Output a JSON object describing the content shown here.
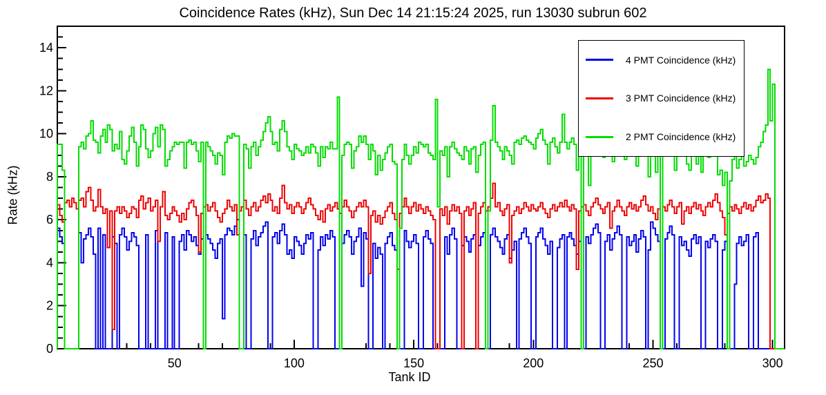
{
  "page_title": "Coincidence Rates (kHz), Sun Dec 14 21:15:24 2025, run 13030 subrun 602",
  "chart_data": {
    "type": "line",
    "subtype": "step-histogram",
    "title": "Coincidence Rates (kHz), Sun Dec 14 21:15:24 2025, run 13030 subrun 602",
    "xlabel": "Tank ID",
    "ylabel": "Rate (kHz)",
    "xlim": [
      1,
      305
    ],
    "ylim": [
      0,
      15
    ],
    "x_bin_start": 1,
    "x_bin_width": 1,
    "x_ticks_major": [
      50,
      100,
      150,
      200,
      250,
      300
    ],
    "x_minor_step": 10,
    "y_ticks_major": [
      0,
      2,
      4,
      6,
      8,
      10,
      12,
      14
    ],
    "y_minor_step": 0.5,
    "grid": false,
    "legend_position": "top-right",
    "frame_color": "#000000",
    "background_color": "#ffffff",
    "series": [
      {
        "name": "4 PMT Coincidence (kHz)",
        "color": "#0000ee",
        "values": [
          5.6,
          5.2,
          4.9,
          0,
          0,
          0,
          0,
          0,
          0,
          5.4,
          4.0,
          5.1,
          5.3,
          5.6,
          5.2,
          4.4,
          0,
          5.6,
          0,
          5.3,
          0,
          0,
          0,
          5.2,
          4.9,
          0,
          5.3,
          5.6,
          5.2,
          4.6,
          5.0,
          5.4,
          5.2,
          4.8,
          0,
          0,
          0,
          5.3,
          0,
          0,
          0,
          5.5,
          0,
          0,
          0,
          5.4,
          0,
          0,
          5.2,
          0,
          0,
          5.0,
          5.3,
          4.6,
          5.5,
          5.3,
          5.0,
          5.2,
          4.8,
          4.4,
          5.1,
          0,
          5.3,
          5.1,
          4.9,
          4.6,
          4.2,
          4.9,
          5.1,
          1.4,
          5.3,
          5.6,
          5.5,
          5.3,
          5.7,
          6.0,
          0,
          0,
          5.3,
          0,
          0,
          5.1,
          5.5,
          4.8,
          5.2,
          5.4,
          5.7,
          5.9,
          0,
          0,
          5.2,
          5.4,
          4.9,
          5.5,
          5.8,
          5.3,
          4.4,
          4.6,
          4.2,
          5.2,
          5.0,
          4.8,
          4.4,
          4.9,
          5.3,
          5.1,
          5.4,
          0,
          0,
          4.6,
          5.2,
          4.8,
          5.3,
          5.1,
          5.5,
          5.2,
          0,
          0,
          0,
          4.9,
          5.3,
          5.5,
          5.2,
          4.4,
          5.0,
          5.2,
          5.6,
          2.9,
          5.4,
          5.1,
          0,
          0,
          4.9,
          4.2,
          4.7,
          4.4,
          0,
          4.9,
          5.2,
          5.4,
          4.8,
          4.6,
          0,
          0,
          0,
          5.5,
          5.0,
          4.7,
          5.0,
          5.3,
          4.9,
          0,
          0,
          5.2,
          5.5,
          5.1,
          4.9,
          0,
          0,
          0,
          0,
          0,
          5.2,
          4.4,
          5.3,
          5.6,
          5.1,
          0,
          0,
          4.8,
          5.2,
          5.0,
          4.5,
          5.1,
          5.3,
          0,
          4.8,
          5.2,
          5.4,
          0,
          0,
          5.3,
          5.6,
          5.2,
          5.0,
          4.7,
          4.4,
          5.1,
          5.3,
          4.2,
          4.6,
          5.0,
          0,
          5.1,
          5.4,
          5.6,
          5.2,
          4.9,
          0,
          0,
          5.2,
          5.4,
          5.6,
          5.1,
          4.8,
          4.4,
          5.0,
          0,
          0,
          4.7,
          5.1,
          5.3,
          0,
          5.2,
          5.4,
          5.1,
          4.8,
          4.4,
          5.0,
          0,
          0,
          5.2,
          4.9,
          5.3,
          5.6,
          5.8,
          5.4,
          0,
          0,
          5.0,
          5.3,
          4.6,
          5.1,
          5.4,
          5.7,
          5.3,
          0,
          0,
          5.2,
          4.8,
          5.0,
          5.3,
          4.5,
          5.1,
          5.5,
          5.2,
          0,
          4.6,
          5.9,
          5.6,
          5.3,
          5.0,
          0,
          0,
          5.1,
          5.4,
          5.7,
          5.3,
          0,
          0,
          5.2,
          4.8,
          5.0,
          4.6,
          4.3,
          5.1,
          5.3,
          4.9,
          5.2,
          0,
          0,
          5.0,
          4.7,
          5.1,
          5.3,
          5.0,
          0,
          0,
          4.6,
          5.0,
          0,
          0,
          0,
          3.0,
          4.9,
          5.2,
          4.8,
          5.0,
          5.3,
          0,
          0,
          5.2,
          5.4,
          0,
          0,
          0,
          0,
          0,
          0,
          0
        ]
      },
      {
        "name": "3 PMT Coincidence (kHz)",
        "color": "#ee0000",
        "values": [
          6.7,
          6.2,
          5.9,
          6.8,
          6.9,
          6.6,
          7.0,
          6.8,
          6.5,
          6.9,
          7.0,
          6.6,
          7.3,
          7.5,
          6.9,
          6.4,
          6.6,
          7.4,
          6.6,
          6.3,
          6.5,
          4.7,
          6.4,
          0.9,
          6.4,
          6.6,
          6.3,
          6.6,
          6.4,
          6.1,
          6.3,
          6.6,
          6.5,
          6.1,
          6.9,
          7.1,
          6.5,
          6.8,
          7.0,
          6.4,
          6.6,
          6.9,
          5.0,
          6.6,
          7.3,
          6.2,
          6.0,
          6.3,
          6.6,
          6.4,
          6.2,
          5.9,
          6.3,
          6.0,
          6.5,
          6.8,
          6.9,
          6.6,
          6.2,
          4.5,
          6.3,
          6.6,
          6.7,
          6.4,
          6.6,
          6.8,
          6.4,
          6.1,
          5.9,
          6.3,
          6.5,
          6.9,
          6.6,
          6.4,
          6.7,
          5.3,
          6.4,
          6.6,
          6.9,
          6.5,
          6.2,
          6.6,
          6.8,
          6.4,
          6.6,
          6.9,
          7.1,
          6.8,
          7.2,
          6.9,
          6.4,
          6.6,
          6.3,
          7.0,
          7.6,
          6.8,
          6.5,
          6.7,
          6.3,
          6.6,
          6.8,
          6.6,
          6.3,
          6.5,
          6.8,
          7.0,
          6.7,
          6.5,
          6.2,
          6.0,
          6.4,
          5.9,
          6.5,
          6.7,
          6.4,
          6.6,
          6.8,
          6.5,
          6.3,
          6.6,
          6.9,
          6.6,
          6.4,
          6.1,
          6.4,
          6.6,
          6.8,
          6.6,
          6.9,
          6.6,
          3.5,
          6.2,
          6.4,
          5.9,
          6.2,
          5.8,
          6.1,
          6.4,
          6.6,
          6.8,
          6.3,
          6.0,
          3.7,
          6.3,
          6.6,
          7.0,
          6.6,
          6.3,
          6.6,
          6.8,
          6.4,
          6.7,
          6.5,
          6.3,
          6.6,
          6.4,
          6.2,
          6.0,
          0,
          0,
          6.5,
          6.2,
          6.6,
          5.8,
          6.4,
          6.7,
          6.4,
          6.6,
          6.3,
          0,
          6.4,
          6.6,
          6.2,
          6.5,
          6.8,
          0,
          6.3,
          6.6,
          6.8,
          6.4,
          6.6,
          7.0,
          7.7,
          6.6,
          6.8,
          6.4,
          6.2,
          6.5,
          6.7,
          4.0,
          6.2,
          6.4,
          6.6,
          6.3,
          6.5,
          6.8,
          6.6,
          6.4,
          6.7,
          6.5,
          6.4,
          6.6,
          6.8,
          6.5,
          6.3,
          6.1,
          6.5,
          6.7,
          6.4,
          6.6,
          6.8,
          6.6,
          6.9,
          6.6,
          6.4,
          6.7,
          6.5,
          3.7,
          6.4,
          6.6,
          6.7,
          6.4,
          6.2,
          6.6,
          6.8,
          7.0,
          6.7,
          6.5,
          6.3,
          6.6,
          6.8,
          5.6,
          6.4,
          6.6,
          6.9,
          6.6,
          6.4,
          6.2,
          6.6,
          6.8,
          6.5,
          6.7,
          6.4,
          6.6,
          6.9,
          7.1,
          6.7,
          6.4,
          6.6,
          6.3,
          6.0,
          6.5,
          0,
          6.6,
          6.4,
          6.7,
          6.9,
          6.6,
          6.3,
          6.6,
          6.8,
          5.8,
          6.4,
          6.6,
          6.3,
          6.6,
          6.8,
          6.5,
          6.7,
          6.4,
          6.2,
          6.6,
          6.8,
          6.6,
          6.9,
          7.2,
          6.8,
          6.4,
          6.1,
          5.3,
          6.3,
          6.6,
          6.4,
          6.7,
          6.5,
          6.3,
          6.6,
          6.8,
          6.5,
          6.7,
          6.4,
          6.6,
          6.9,
          7.1,
          6.8,
          6.9,
          7.2,
          7.0,
          0,
          0
        ]
      },
      {
        "name": "2 PMT Coincidence (kHz)",
        "color": "#00dd00",
        "values": [
          9.5,
          9.5,
          8.3,
          0,
          0,
          0,
          0,
          0,
          0,
          9.4,
          9.6,
          9.3,
          9.9,
          10.0,
          10.6,
          9.7,
          9.6,
          9.1,
          9.9,
          10.2,
          9.6,
          10.4,
          10.2,
          9.2,
          9.5,
          9.3,
          10.1,
          8.8,
          8.6,
          9.2,
          9.9,
          10.3,
          9.6,
          8.5,
          9.4,
          10.4,
          10.2,
          9.3,
          8.9,
          9.2,
          10.0,
          10.3,
          9.4,
          10.4,
          10.2,
          8.5,
          8.8,
          9.2,
          9.4,
          9.6,
          9.5,
          9.6,
          9.6,
          8.4,
          9.6,
          9.7,
          9.5,
          9.6,
          9.2,
          8.7,
          9.6,
          0,
          9.6,
          9.4,
          9.2,
          9.0,
          8.6,
          9.1,
          9.0,
          8.1,
          9.6,
          9.9,
          9.8,
          10.0,
          9.9,
          9.9,
          0,
          0,
          9.5,
          9.3,
          8.4,
          9.4,
          9.6,
          9.0,
          9.4,
          9.7,
          10.1,
          10.5,
          10.8,
          10.1,
          9.5,
          9.6,
          9.2,
          10.2,
          10.6,
          10.1,
          9.4,
          9.2,
          8.8,
          9.5,
          9.3,
          9.2,
          9.0,
          9.1,
          9.4,
          9.1,
          9.5,
          9.4,
          9.1,
          8.5,
          9.4,
          8.9,
          9.4,
          9.3,
          9.6,
          9.3,
          9.3,
          11.7,
          0,
          9.0,
          9.5,
          9.6,
          9.5,
          8.4,
          9.2,
          9.4,
          9.9,
          9.6,
          9.9,
          9.5,
          8.8,
          9.5,
          9.2,
          8.1,
          9.0,
          8.3,
          8.8,
          9.1,
          9.4,
          9.5,
          8.7,
          8.6,
          0,
          5.6,
          8.8,
          9.5,
          9.0,
          8.6,
          9.0,
          9.4,
          9.1,
          9.6,
          9.5,
          9.4,
          9.5,
          9.1,
          9.0,
          8.8,
          11.6,
          6.6,
          9.2,
          9.0,
          9.4,
          8.0,
          9.4,
          9.6,
          9.3,
          9.1,
          9.0,
          8.8,
          9.4,
          9.2,
          8.6,
          9.3,
          9.4,
          8.2,
          9.0,
          9.5,
          9.6,
          0,
          6.4,
          9.7,
          11.3,
          9.6,
          9.4,
          9.2,
          8.8,
          9.4,
          9.2,
          9.0,
          8.6,
          9.6,
          9.7,
          9.5,
          9.8,
          9.9,
          9.7,
          9.6,
          9.5,
          9.3,
          9.8,
          10.0,
          10.2,
          9.7,
          9.5,
          8.6,
          9.6,
          9.8,
          9.4,
          9.1,
          9.6,
          10.9,
          9.6,
          9.3,
          9.6,
          9.8,
          9.5,
          8.3,
          9.1,
          0,
          9.6,
          9.4,
          7.6,
          9.2,
          9.5,
          9.8,
          9.4,
          9.1,
          8.9,
          9.3,
          9.6,
          9.0,
          8.7,
          9.5,
          9.8,
          9.5,
          9.1,
          8.8,
          9.5,
          9.2,
          9.7,
          9.4,
          8.5,
          9.2,
          9.8,
          9.5,
          9.0,
          8.0,
          9.4,
          9.7,
          8.2,
          9.0,
          0,
          9.6,
          9.3,
          9.8,
          10.2,
          9.5,
          8.3,
          9.2,
          9.8,
          9.0,
          9.4,
          8.6,
          8.3,
          9.4,
          9.1,
          8.6,
          9.3,
          8.2,
          9.2,
          9.4,
          8.9,
          9.0,
          9.4,
          9.2,
          8.1,
          8.3,
          7.6,
          8.2,
          0,
          7.8,
          8.8,
          9.0,
          8.4,
          8.8,
          9.0,
          8.5,
          8.7,
          9.0,
          8.8,
          8.6,
          8.9,
          9.4,
          9.6,
          10.1,
          10.4,
          13.0,
          10.6,
          12.3
        ]
      }
    ]
  }
}
